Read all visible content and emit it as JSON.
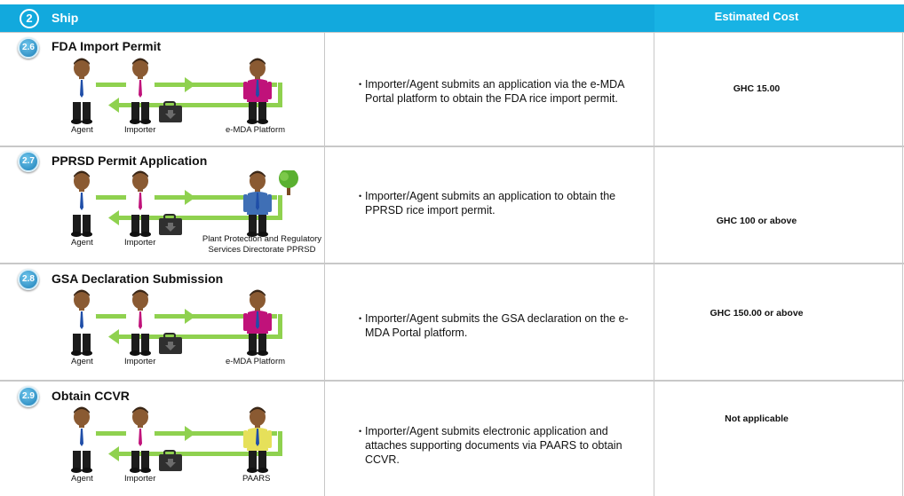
{
  "header": {
    "phase_number": "2",
    "phase_title": "Ship",
    "cost_title": "Estimated Cost"
  },
  "steps": [
    {
      "number": "2.6",
      "title": "FDA Import Permit",
      "description": "Importer/Agent submits an application via the e-MDA Portal platform to obtain the FDA rice import permit.",
      "cost": "GHC 15.00",
      "labels": {
        "agent": "Agent",
        "importer": "Importer",
        "authority": "e-MDA Platform"
      },
      "authority_shirt_color": "#c0127a"
    },
    {
      "number": "2.7",
      "title": "PPRSD Permit Application",
      "description": "Importer/Agent submits an application to obtain the PPRSD rice import permit.",
      "cost": "GHC 100 or above",
      "labels": {
        "agent": "Agent",
        "importer": "Importer",
        "authority": "Plant Protection and Regulatory Services Directorate PPRSD"
      },
      "authority_shirt_color": "#3f6fb5"
    },
    {
      "number": "2.8",
      "title": "GSA Declaration Submission",
      "description": "Importer/Agent submits the GSA declaration on the e-MDA Portal platform.",
      "cost": "GHC 150.00 or above",
      "labels": {
        "agent": "Agent",
        "importer": "Importer",
        "authority": "e-MDA Platform"
      },
      "authority_shirt_color": "#c0127a"
    },
    {
      "number": "2.9",
      "title": "Obtain CCVR",
      "description": "Importer/Agent submits electronic application and attaches supporting documents via PAARS to obtain CCVR.",
      "cost": "Not applicable",
      "labels": {
        "agent": "Agent",
        "importer": "Importer",
        "authority": "PAARS"
      },
      "authority_shirt_color": "#e6e05a"
    }
  ],
  "colors": {
    "header": "#12a9dd",
    "arrow": "#8fd14f",
    "grid": "#c8c8c8"
  }
}
